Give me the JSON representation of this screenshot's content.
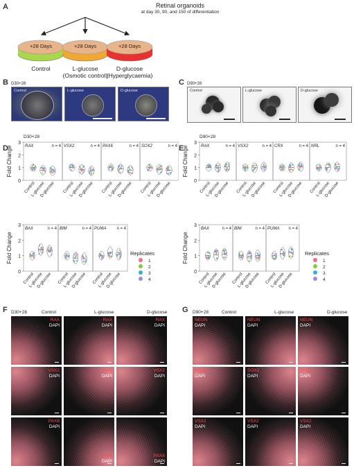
{
  "panels": {
    "A": {
      "label": "A",
      "title": "Retinal organoids",
      "subtitle": "at day 30, 90, and 150 of differentiation",
      "dishes": [
        {
          "text": "+28 Days",
          "condition": "Control",
          "condition2": "",
          "color": "#a8d84a"
        },
        {
          "text": "+28 Days",
          "condition": "L-glucose",
          "condition2": "(Osmotic control)",
          "color": "#f0a830"
        },
        {
          "text": "+28 Days",
          "condition": "D-glucose",
          "condition2": "(Hyperglycaemia)",
          "color": "#e8322f"
        }
      ]
    },
    "B": {
      "label": "B",
      "time": "D30+28",
      "photos": [
        "Control",
        "L-glucose",
        "D-glucose"
      ]
    },
    "C": {
      "label": "C",
      "time": "D90+28",
      "photos": [
        "Control",
        "L-glucose",
        "D-glucose"
      ]
    },
    "D": {
      "label": "D"
    },
    "E": {
      "label": "E"
    },
    "F": {
      "label": "F",
      "time": "D30+28",
      "columns": [
        "Control",
        "L-glucose",
        "D-glucose"
      ],
      "rows": [
        {
          "marker": "RAX",
          "counter": "DAPI"
        },
        {
          "marker": "VSX2",
          "counter": "DAPI"
        },
        {
          "marker": "PAX6",
          "counter": "DAPI"
        }
      ]
    },
    "G": {
      "label": "G",
      "time": "D90+28",
      "columns": [
        "Control",
        "L-glucose",
        "D-glucose"
      ],
      "rows": [
        {
          "marker": "NEUN",
          "counter": "DAPI"
        },
        {
          "marker": "SOX2",
          "counter": "DAPI"
        },
        {
          "marker": "VSX2",
          "counter": "DAPI"
        }
      ]
    }
  },
  "legend": {
    "title": "Replicates",
    "entries": [
      "1",
      "2",
      "3",
      "4"
    ],
    "colors": [
      "#f06a8a",
      "#8cc63f",
      "#3ab0c8",
      "#9d8ae0"
    ]
  },
  "chart_data": [
    {
      "type": "violin",
      "panel": "D-top",
      "time": "D30+28",
      "ylabel": "Fold Change",
      "yticks": [
        "0",
        "1",
        "2",
        "3"
      ],
      "ylim": [
        0,
        3
      ],
      "categories": [
        "Control",
        "L-glucose",
        "D-glucose"
      ],
      "genes": [
        {
          "name": "RAX",
          "n": "n = 4",
          "medians": [
            1.0,
            0.8,
            0.75
          ]
        },
        {
          "name": "VSX2",
          "n": "n = 4",
          "medians": [
            1.0,
            0.85,
            0.75
          ]
        },
        {
          "name": "PAX6",
          "n": "n = 4",
          "medians": [
            1.0,
            0.9,
            0.8
          ]
        },
        {
          "name": "SOX2",
          "n": "n = 4",
          "medians": [
            1.0,
            0.85,
            0.8
          ]
        }
      ]
    },
    {
      "type": "violin",
      "panel": "D-bottom",
      "time": "",
      "ylabel": "Fold Change",
      "yticks": [
        "0",
        "1",
        "2",
        "3"
      ],
      "ylim": [
        0,
        3
      ],
      "categories": [
        "Control",
        "L-glucose",
        "D-glucose"
      ],
      "genes": [
        {
          "name": "BAX",
          "n": "n = 4",
          "medians": [
            1.0,
            1.4,
            1.3
          ]
        },
        {
          "name": "BIM",
          "n": "n = 4",
          "medians": [
            1.0,
            0.85,
            0.8
          ]
        },
        {
          "name": "PUMA",
          "n": "n = 4",
          "medians": [
            1.0,
            1.2,
            1.1
          ]
        }
      ]
    },
    {
      "type": "violin",
      "panel": "E-top",
      "time": "D90+28",
      "ylabel": "Fold Change",
      "yticks": [
        "0",
        "1",
        "2",
        "3"
      ],
      "ylim": [
        0,
        3
      ],
      "categories": [
        "Control",
        "L-glucose",
        "D-glucose"
      ],
      "genes": [
        {
          "name": "RAX",
          "n": "n = 4",
          "medians": [
            1.0,
            1.0,
            1.05
          ]
        },
        {
          "name": "VSX2",
          "n": "n = 4",
          "medians": [
            1.0,
            1.0,
            1.05
          ]
        },
        {
          "name": "CRX",
          "n": "n = 4",
          "medians": [
            1.0,
            1.0,
            1.05
          ]
        },
        {
          "name": "NRL",
          "n": "n = 4",
          "medians": [
            1.0,
            1.0,
            1.05
          ]
        }
      ]
    },
    {
      "type": "violin",
      "panel": "E-bottom",
      "time": "",
      "ylabel": "Fold Change",
      "yticks": [
        "0",
        "1",
        "2",
        "3"
      ],
      "ylim": [
        0,
        3
      ],
      "categories": [
        "Control",
        "L-glucose",
        "D-glucose"
      ],
      "genes": [
        {
          "name": "BAX",
          "n": "n = 4",
          "medians": [
            1.0,
            1.05,
            1.1
          ]
        },
        {
          "name": "BIM",
          "n": "n = 4",
          "medians": [
            1.0,
            0.95,
            1.0
          ]
        },
        {
          "name": "PUMA",
          "n": "n = 4",
          "medians": [
            1.0,
            1.15,
            1.2
          ]
        }
      ]
    }
  ]
}
